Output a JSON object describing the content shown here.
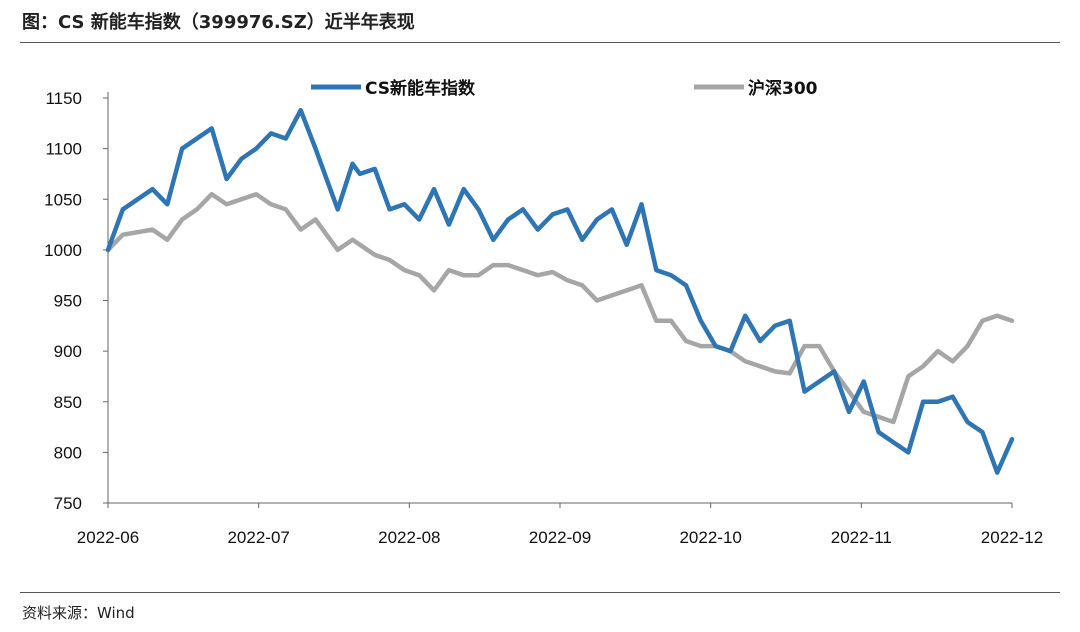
{
  "header": {
    "title": "图：CS 新能车指数（399976.SZ）近半年表现"
  },
  "footer": {
    "source": "资料来源：Wind"
  },
  "chart_data": {
    "type": "line",
    "title": "图：CS 新能车指数（399976.SZ）近半年表现",
    "xlabel": "",
    "ylabel": "",
    "ylim": [
      750,
      1150
    ],
    "yticks": [
      750,
      800,
      850,
      900,
      950,
      1000,
      1050,
      1100,
      1150
    ],
    "xticks": [
      "2022-06",
      "2022-07",
      "2022-08",
      "2022-09",
      "2022-10",
      "2022-11",
      "2022-12"
    ],
    "xlim": [
      0,
      122
    ],
    "grid": false,
    "legend_position": "top",
    "series": [
      {
        "name": "CS新能车指数",
        "color": "#2e75b6",
        "x": [
          0,
          2,
          6,
          8,
          10,
          12,
          14,
          16,
          18,
          20,
          22,
          24,
          26,
          28,
          30,
          31,
          33,
          34,
          36,
          38,
          40,
          42,
          44,
          46,
          48,
          50,
          52,
          54,
          56,
          58,
          60,
          62,
          64,
          66,
          68,
          70,
          72,
          74,
          76,
          78,
          80,
          82,
          84,
          86,
          88,
          90,
          92,
          94,
          96,
          98,
          100,
          102,
          104,
          106,
          108,
          110,
          112,
          114,
          116,
          118,
          120,
          122
        ],
        "values": [
          1000,
          1040,
          1060,
          1045,
          1100,
          1110,
          1120,
          1070,
          1090,
          1100,
          1115,
          1110,
          1138,
          1100,
          1060,
          1040,
          1085,
          1075,
          1080,
          1040,
          1045,
          1030,
          1060,
          1025,
          1060,
          1040,
          1010,
          1030,
          1040,
          1020,
          1035,
          1040,
          1010,
          1030,
          1040,
          1005,
          1045,
          980,
          975,
          965,
          930,
          905,
          900,
          935,
          910,
          925,
          930,
          860,
          870,
          880,
          840,
          870,
          820,
          810,
          800,
          850,
          850,
          855,
          830,
          820,
          780,
          813
        ],
        "labels_note": "values read from plot"
      },
      {
        "name": "沪深300",
        "color": "#a6a6a6",
        "x": [
          0,
          2,
          6,
          8,
          10,
          12,
          14,
          16,
          18,
          20,
          22,
          24,
          26,
          28,
          30,
          31,
          33,
          34,
          36,
          38,
          40,
          42,
          44,
          46,
          48,
          50,
          52,
          54,
          56,
          58,
          60,
          62,
          64,
          66,
          68,
          70,
          72,
          74,
          76,
          78,
          80,
          82,
          84,
          86,
          88,
          90,
          92,
          94,
          96,
          98,
          100,
          102,
          104,
          106,
          108,
          110,
          112,
          114,
          116,
          118,
          120,
          122
        ],
        "values": [
          1000,
          1015,
          1020,
          1010,
          1030,
          1040,
          1055,
          1045,
          1050,
          1055,
          1045,
          1040,
          1020,
          1030,
          1010,
          1000,
          1010,
          1005,
          995,
          990,
          980,
          975,
          960,
          980,
          975,
          975,
          985,
          985,
          980,
          975,
          978,
          970,
          965,
          950,
          955,
          960,
          965,
          930,
          930,
          910,
          905,
          905,
          900,
          890,
          885,
          880,
          878,
          905,
          905,
          880,
          860,
          840,
          835,
          830,
          875,
          885,
          900,
          890,
          905,
          930,
          935,
          930
        ],
        "labels_note": "values read from plot"
      }
    ]
  }
}
